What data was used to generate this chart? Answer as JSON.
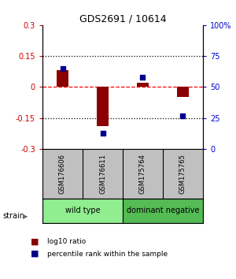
{
  "title": "GDS2691 / 10614",
  "samples": [
    "GSM176606",
    "GSM176611",
    "GSM175764",
    "GSM175765"
  ],
  "log10_ratio": [
    0.08,
    -0.19,
    0.02,
    -0.05
  ],
  "percentile_rank": [
    65,
    13,
    58,
    27
  ],
  "groups": [
    {
      "label": "wild type",
      "indices": [
        0,
        1
      ],
      "color": "#90EE90"
    },
    {
      "label": "dominant negative",
      "indices": [
        2,
        3
      ],
      "color": "#55BB55"
    }
  ],
  "ylim_left": [
    -0.3,
    0.3
  ],
  "ylim_right": [
    0,
    100
  ],
  "yticks_left": [
    -0.3,
    -0.15,
    0,
    0.15,
    0.3
  ],
  "yticks_right": [
    0,
    25,
    50,
    75,
    100
  ],
  "hlines_dotted": [
    0.15,
    -0.15
  ],
  "hline_dashed": 0.0,
  "bar_color": "#8B0000",
  "scatter_color": "#00008B",
  "left_tick_color": "#CC0000",
  "right_tick_color": "#0000CC",
  "legend_red_label": "log10 ratio",
  "legend_blue_label": "percentile rank within the sample",
  "strain_label": "strain",
  "sample_bg_color": "#C0C0C0",
  "fig_width": 3.0,
  "fig_height": 3.54,
  "bar_width": 0.3
}
